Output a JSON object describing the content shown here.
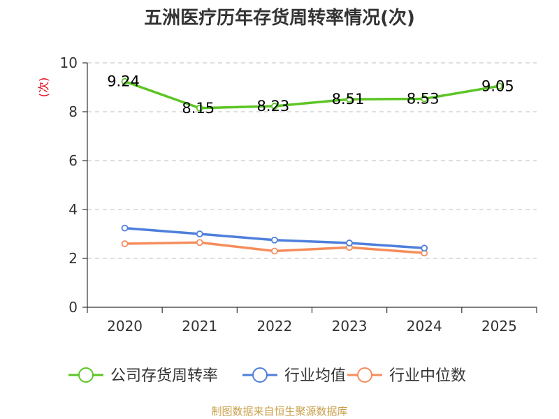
{
  "chart_data": {
    "type": "line",
    "title": "五洲医疗历年存货周转率情况(次)",
    "ylabel": "(次)",
    "ylim": [
      0,
      10
    ],
    "yticks": [
      0,
      2,
      4,
      6,
      8,
      10
    ],
    "categories": [
      "2020",
      "2021",
      "2022",
      "2023",
      "2024",
      "2025"
    ],
    "grid": true,
    "legend_position": "bottom",
    "series": [
      {
        "name": "公司存货周转率",
        "color": "#5cc524",
        "values": [
          9.24,
          8.15,
          8.23,
          8.51,
          8.53,
          9.05
        ],
        "labels": [
          "9.24",
          "8.15",
          "8.23",
          "8.51",
          "8.53",
          "9.05"
        ]
      },
      {
        "name": "行业均值",
        "color": "#4e7fdc",
        "values": [
          3.24,
          3.0,
          2.75,
          2.63,
          2.42,
          null
        ]
      },
      {
        "name": "行业中位数",
        "color": "#f58d5c",
        "values": [
          2.6,
          2.65,
          2.3,
          2.45,
          2.22,
          null
        ]
      }
    ]
  },
  "source": "制图数据来自恒生聚源数据库"
}
